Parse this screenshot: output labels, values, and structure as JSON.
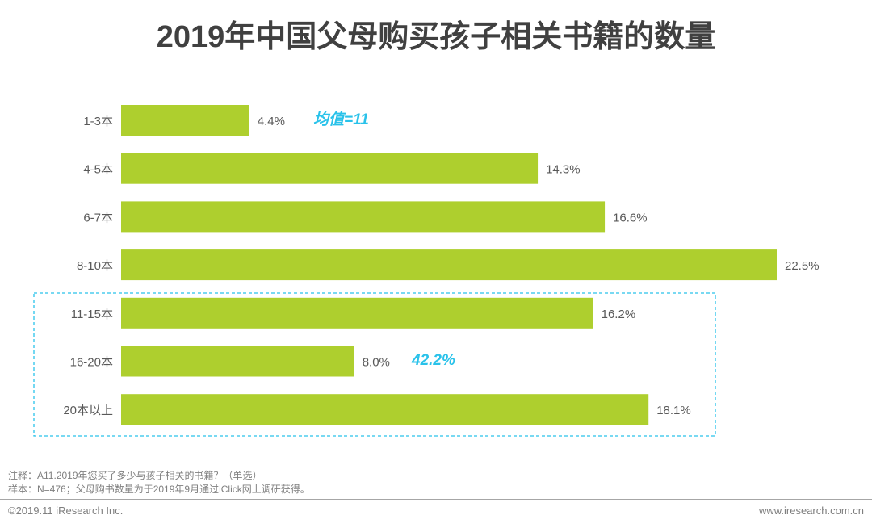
{
  "chart_data": {
    "type": "bar",
    "orientation": "horizontal",
    "title": "2019年中国父母购买孩子相关书籍的数量",
    "categories": [
      "1-3本",
      "4-5本",
      "6-7本",
      "8-10本",
      "11-15本",
      "16-20本",
      "20本以上"
    ],
    "values": [
      4.4,
      14.3,
      16.6,
      22.5,
      16.2,
      8.0,
      18.1
    ],
    "labels": [
      "4.4%",
      "14.3%",
      "16.6%",
      "22.5%",
      "16.2%",
      "8.0%",
      "18.1%"
    ],
    "unit": "%",
    "xlim": [
      0,
      22.5
    ],
    "grid": false,
    "annotations": {
      "mean": "均值=11",
      "highlight_total": "42.2%",
      "highlight_categories": [
        "11-15本",
        "16-20本",
        "20本以上"
      ]
    },
    "colors": {
      "bar": "#AECF2E",
      "accent": "#29C2EA"
    }
  },
  "notes": {
    "note": "注释：A11.2019年您买了多少与孩子相关的书籍？（单选）",
    "sample": "样本：N=476；父母购书数量为于2019年9月通过iClick网上调研获得。"
  },
  "footer": {
    "copyright": "©2019.11 iResearch Inc.",
    "website": "www.iresearch.com.cn"
  }
}
